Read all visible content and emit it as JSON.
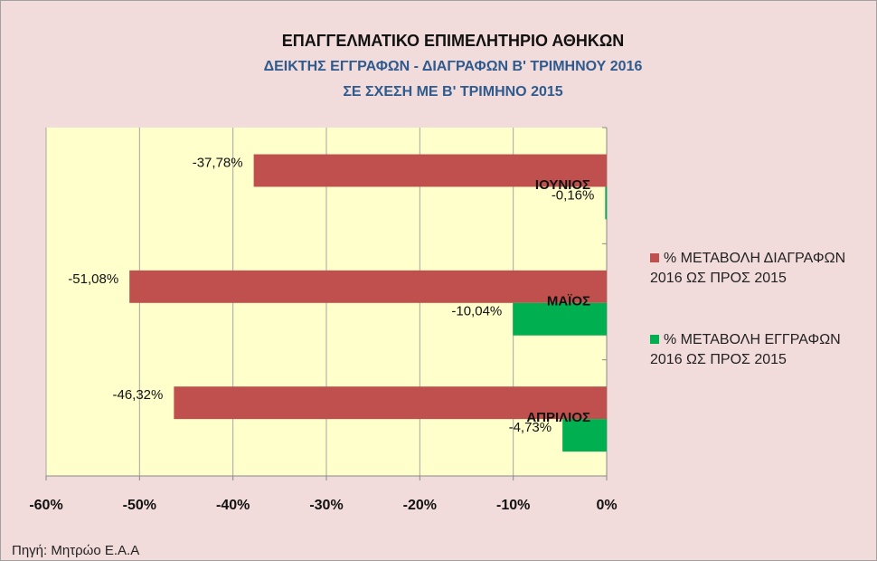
{
  "chart_data": {
    "type": "hbar",
    "title": "ΕΠΑΓΓΕΛΜΑΤΙΚΟ ΕΠΙΜΕΛΗΤΗΡΙΟ ΑΘΗΚΩΝ",
    "subtitle": [
      "ΔΕΙΚΤΗΣ ΕΓΓΡΑΦΩΝ  - ΔΙΑΓΡΑΦΩΝ Β' ΤΡΙΜΗΝΟΥ 2016",
      "ΣΕ ΣΧΕΣΗ ΜΕ Β' ΤΡΙΜΗΝΟ 2015"
    ],
    "categories": [
      "ΑΠΡΙΛΙΟΣ",
      "ΜΑΪΟΣ",
      "ΙΟΥΝΙΟΣ"
    ],
    "series": [
      {
        "name": "% ΜΕΤΑΒΟΛΗ ΔΙΑΓΡΑΦΩΝ 2016 ΩΣ ΠΡΟΣ 2015",
        "color": "#c0504d",
        "values": [
          -46.32,
          -51.08,
          -37.78
        ],
        "value_labels": [
          "-46,32%",
          "-51,08%",
          "-37,78%"
        ]
      },
      {
        "name": "% ΜΕΤΑΒΟΛΗ ΕΓΓΡΑΦΩΝ 2016 ΩΣ ΠΡΟΣ 2015",
        "color": "#00b050",
        "values": [
          -4.73,
          -10.04,
          -0.16
        ],
        "value_labels": [
          "-4,73%",
          "-10,04%",
          "-0,16%"
        ]
      }
    ],
    "xlim": [
      -60,
      0
    ],
    "xticks": [
      {
        "value": -60,
        "label": "-60%"
      },
      {
        "value": -50,
        "label": "-50%"
      },
      {
        "value": -40,
        "label": "-40%"
      },
      {
        "value": -30,
        "label": "-30%"
      },
      {
        "value": -20,
        "label": "-20%"
      },
      {
        "value": -10,
        "label": "-10%"
      },
      {
        "value": 0,
        "label": "0%"
      }
    ],
    "grid": true,
    "legend": "right",
    "source": "Πηγή: Μητρώο Ε.Α.Α"
  }
}
